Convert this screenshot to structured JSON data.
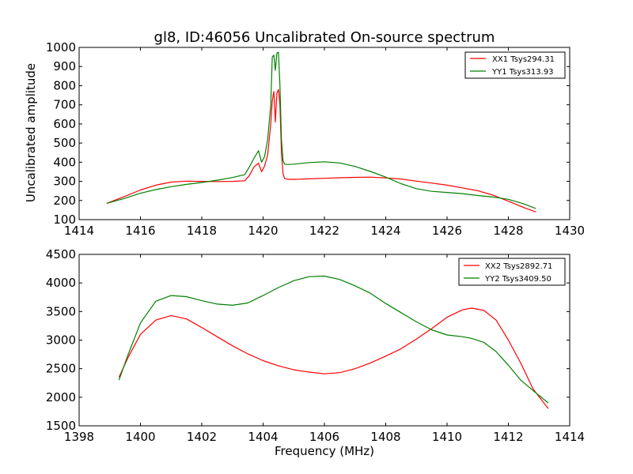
{
  "chart_data": [
    {
      "type": "line",
      "title": "gl8, ID:46056 Uncalibrated On-source spectrum",
      "xlabel": "",
      "ylabel": "Uncalibrated amplitude",
      "xlim": [
        1414,
        1430
      ],
      "ylim": [
        100,
        1000
      ],
      "xticks": [
        1414,
        1416,
        1418,
        1420,
        1422,
        1424,
        1426,
        1428,
        1430
      ],
      "yticks": [
        100,
        200,
        300,
        400,
        500,
        600,
        700,
        800,
        900,
        1000
      ],
      "legend_position": "top-right",
      "grid": false,
      "series": [
        {
          "name": "XX1 Tsys294.31",
          "color": "#ff0000",
          "x": [
            1414.9,
            1415.5,
            1416.0,
            1416.5,
            1417.0,
            1417.5,
            1418.0,
            1418.5,
            1419.0,
            1419.4,
            1419.55,
            1419.7,
            1419.85,
            1419.95,
            1420.05,
            1420.15,
            1420.25,
            1420.3,
            1420.35,
            1420.4,
            1420.45,
            1420.5,
            1420.55,
            1420.6,
            1420.65,
            1420.7,
            1420.8,
            1421.0,
            1421.5,
            1422.0,
            1422.5,
            1423.0,
            1423.5,
            1424.0,
            1424.5,
            1425.0,
            1425.5,
            1426.0,
            1426.5,
            1427.0,
            1427.5,
            1428.0,
            1428.5,
            1428.9
          ],
          "y": [
            185,
            222,
            255,
            280,
            296,
            301,
            300,
            299,
            300,
            303,
            330,
            375,
            395,
            350,
            380,
            440,
            600,
            720,
            770,
            610,
            760,
            780,
            700,
            450,
            340,
            315,
            311,
            310,
            313,
            316,
            319,
            321,
            322,
            318,
            312,
            301,
            291,
            280,
            266,
            251,
            228,
            196,
            163,
            140
          ]
        },
        {
          "name": "YY1 Tsys313.93",
          "color": "#008000",
          "x": [
            1414.9,
            1415.5,
            1416.0,
            1416.5,
            1417.0,
            1417.5,
            1418.0,
            1418.5,
            1419.0,
            1419.4,
            1419.55,
            1419.7,
            1419.85,
            1419.95,
            1420.05,
            1420.15,
            1420.25,
            1420.3,
            1420.35,
            1420.4,
            1420.45,
            1420.5,
            1420.55,
            1420.6,
            1420.65,
            1420.7,
            1420.8,
            1421.0,
            1421.5,
            1422.0,
            1422.5,
            1423.0,
            1423.5,
            1424.0,
            1424.5,
            1425.0,
            1425.5,
            1426.0,
            1426.5,
            1427.0,
            1427.5,
            1428.0,
            1428.5,
            1428.9
          ],
          "y": [
            185,
            212,
            238,
            257,
            272,
            284,
            294,
            306,
            320,
            335,
            375,
            420,
            460,
            400,
            430,
            520,
            700,
            950,
            960,
            880,
            970,
            975,
            800,
            520,
            410,
            390,
            388,
            390,
            398,
            402,
            396,
            378,
            352,
            322,
            288,
            262,
            248,
            242,
            236,
            226,
            218,
            206,
            182,
            158
          ]
        }
      ]
    },
    {
      "type": "line",
      "title": "",
      "xlabel": "Frequency (MHz)",
      "ylabel": "",
      "xlim": [
        1398,
        1414
      ],
      "ylim": [
        1500,
        4500
      ],
      "xticks": [
        1398,
        1400,
        1402,
        1404,
        1406,
        1408,
        1410,
        1412,
        1414
      ],
      "yticks": [
        1500,
        2000,
        2500,
        3000,
        3500,
        4000,
        4500
      ],
      "legend_position": "top-right",
      "grid": false,
      "series": [
        {
          "name": "XX2 Tsys2892.71",
          "color": "#ff0000",
          "x": [
            1399.3,
            1399.6,
            1400.0,
            1400.5,
            1401.0,
            1401.5,
            1402.0,
            1402.5,
            1403.0,
            1403.5,
            1404.0,
            1404.5,
            1405.0,
            1405.5,
            1406.0,
            1406.5,
            1407.0,
            1407.5,
            1408.0,
            1408.5,
            1409.0,
            1409.5,
            1410.0,
            1410.5,
            1410.8,
            1411.2,
            1411.6,
            1412.0,
            1412.4,
            1412.8,
            1413.3
          ],
          "y": [
            2350,
            2700,
            3100,
            3350,
            3430,
            3370,
            3220,
            3060,
            2900,
            2760,
            2640,
            2550,
            2480,
            2440,
            2410,
            2430,
            2500,
            2600,
            2720,
            2850,
            3020,
            3200,
            3400,
            3530,
            3560,
            3520,
            3350,
            3000,
            2600,
            2150,
            1800
          ]
        },
        {
          "name": "YY2 Tsys3409.50",
          "color": "#008000",
          "x": [
            1399.3,
            1399.6,
            1400.0,
            1400.5,
            1401.0,
            1401.5,
            1402.0,
            1402.5,
            1403.0,
            1403.5,
            1404.0,
            1404.5,
            1405.0,
            1405.5,
            1406.0,
            1406.5,
            1407.0,
            1407.5,
            1408.0,
            1408.5,
            1409.0,
            1409.5,
            1410.0,
            1410.5,
            1410.8,
            1411.2,
            1411.6,
            1412.0,
            1412.4,
            1412.8,
            1413.3
          ],
          "y": [
            2300,
            2750,
            3300,
            3680,
            3780,
            3760,
            3690,
            3630,
            3610,
            3650,
            3780,
            3920,
            4040,
            4110,
            4120,
            4060,
            3950,
            3820,
            3640,
            3480,
            3320,
            3180,
            3090,
            3060,
            3030,
            2960,
            2800,
            2560,
            2300,
            2120,
            1900
          ]
        }
      ]
    }
  ]
}
